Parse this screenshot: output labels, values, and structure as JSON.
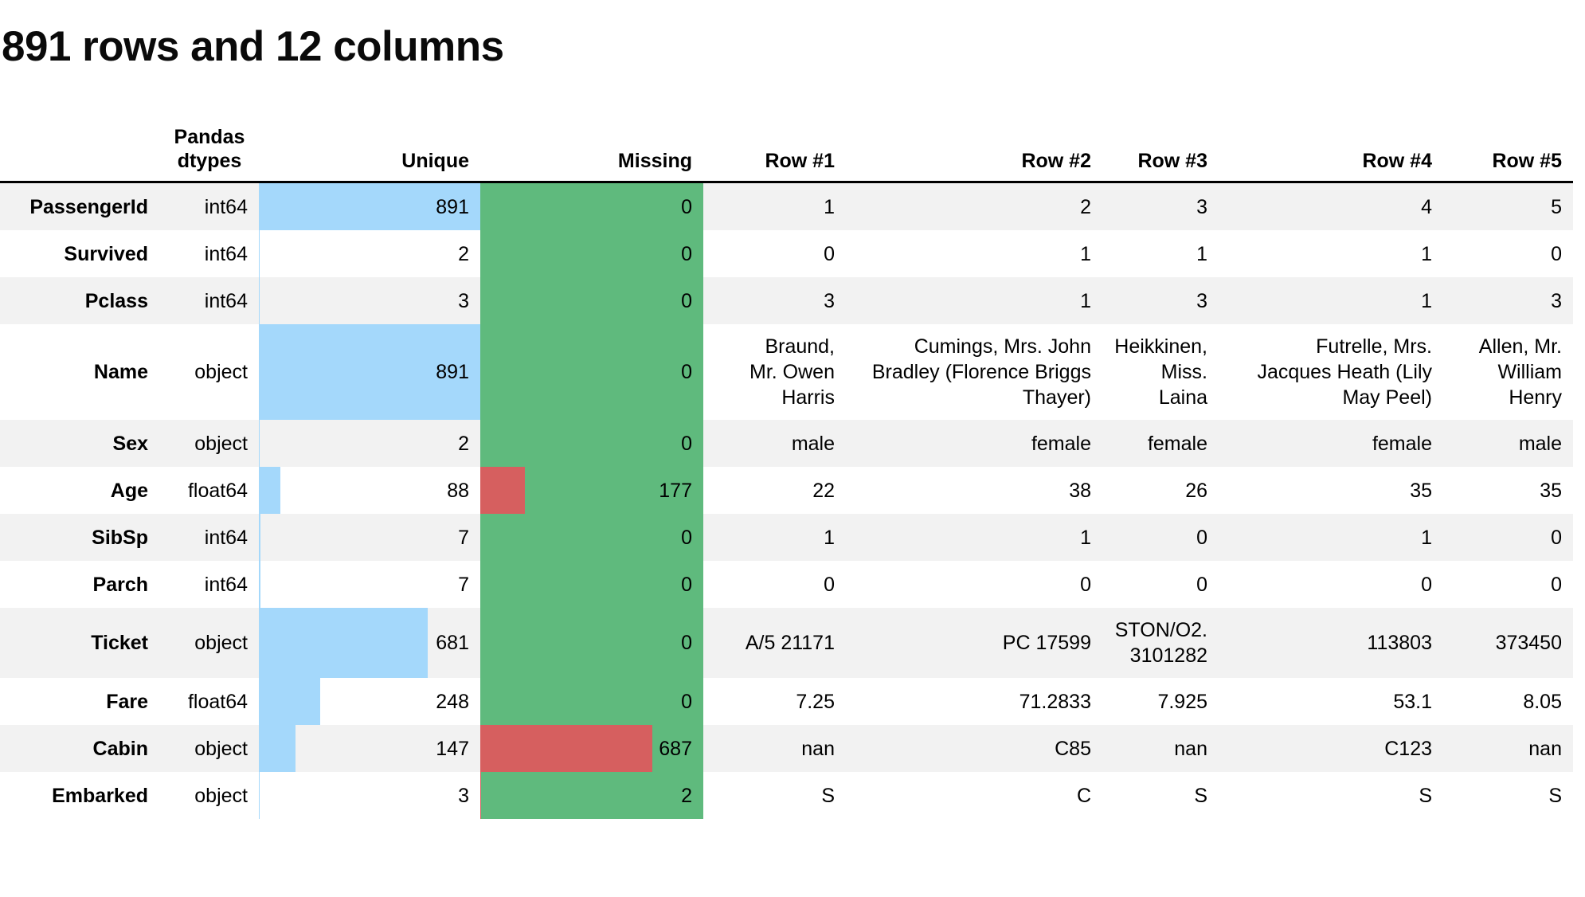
{
  "title": "891 rows and 12 columns",
  "rows_total": 891,
  "header": {
    "dtypes": "Pandas dtypes",
    "unique": "Unique",
    "missing": "Missing",
    "sample_cols": [
      "Row #1",
      "Row #2",
      "Row #3",
      "Row #4",
      "Row #5"
    ]
  },
  "colors": {
    "bar_blue": "#a4d8fb",
    "missing_green": "#5fba7d",
    "missing_red": "#d65f5f",
    "stripe_gray": "#f2f2f2"
  },
  "chart_data": {
    "type": "table",
    "title": "891 rows and 12 columns",
    "columns": [
      {
        "name": "PassengerId",
        "dtype": "int64",
        "unique": 891,
        "missing": 0,
        "values": [
          "1",
          "2",
          "3",
          "4",
          "5"
        ]
      },
      {
        "name": "Survived",
        "dtype": "int64",
        "unique": 2,
        "missing": 0,
        "values": [
          "0",
          "1",
          "1",
          "1",
          "0"
        ]
      },
      {
        "name": "Pclass",
        "dtype": "int64",
        "unique": 3,
        "missing": 0,
        "values": [
          "3",
          "1",
          "3",
          "1",
          "3"
        ]
      },
      {
        "name": "Name",
        "dtype": "object",
        "unique": 891,
        "missing": 0,
        "values": [
          "Braund,\nMr. Owen\nHarris",
          "Cumings, Mrs. John\nBradley (Florence Briggs\nThayer)",
          "Heikkinen,\nMiss.\nLaina",
          "Futrelle, Mrs.\nJacques Heath (Lily\nMay Peel)",
          "Allen, Mr.\nWilliam\nHenry"
        ]
      },
      {
        "name": "Sex",
        "dtype": "object",
        "unique": 2,
        "missing": 0,
        "values": [
          "male",
          "female",
          "female",
          "female",
          "male"
        ]
      },
      {
        "name": "Age",
        "dtype": "float64",
        "unique": 88,
        "missing": 177,
        "values": [
          "22",
          "38",
          "26",
          "35",
          "35"
        ]
      },
      {
        "name": "SibSp",
        "dtype": "int64",
        "unique": 7,
        "missing": 0,
        "values": [
          "1",
          "1",
          "0",
          "1",
          "0"
        ]
      },
      {
        "name": "Parch",
        "dtype": "int64",
        "unique": 7,
        "missing": 0,
        "values": [
          "0",
          "0",
          "0",
          "0",
          "0"
        ]
      },
      {
        "name": "Ticket",
        "dtype": "object",
        "unique": 681,
        "missing": 0,
        "values": [
          "A/5 21171",
          "PC 17599",
          "STON/O2.\n3101282",
          "113803",
          "373450"
        ]
      },
      {
        "name": "Fare",
        "dtype": "float64",
        "unique": 248,
        "missing": 0,
        "values": [
          "7.25",
          "71.2833",
          "7.925",
          "53.1",
          "8.05"
        ]
      },
      {
        "name": "Cabin",
        "dtype": "object",
        "unique": 147,
        "missing": 687,
        "values": [
          "nan",
          "C85",
          "nan",
          "C123",
          "nan"
        ]
      },
      {
        "name": "Embarked",
        "dtype": "object",
        "unique": 3,
        "missing": 2,
        "values": [
          "S",
          "C",
          "S",
          "S",
          "S"
        ]
      }
    ]
  }
}
